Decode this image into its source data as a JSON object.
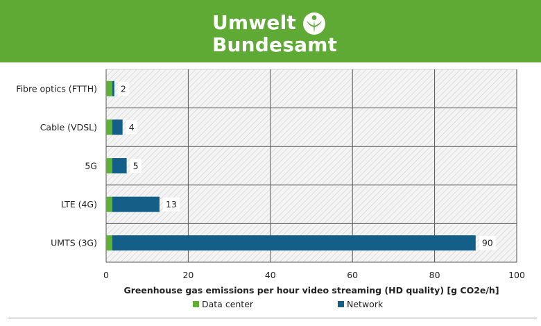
{
  "brand": {
    "line1": "Umwelt",
    "line2": "Bundesamt",
    "icon": "tree-figure-icon",
    "banner_color": "#5eaa35"
  },
  "chart_data": {
    "type": "bar",
    "orientation": "horizontal",
    "stacked": true,
    "categories": [
      "Fibre optics (FTTH)",
      "Cable (VDSL)",
      "5G",
      "LTE (4G)",
      "UMTS (3G)"
    ],
    "series": [
      {
        "name": "Data center",
        "color": "#5fb135",
        "values": [
          1.5,
          1.5,
          1.5,
          1.5,
          1.5
        ]
      },
      {
        "name": "Network",
        "color": "#135f87",
        "values": [
          0.5,
          2.5,
          3.5,
          11.5,
          88.5
        ]
      }
    ],
    "totals": [
      "2",
      "4",
      "5",
      "13",
      "90"
    ],
    "xlim": [
      0,
      100
    ],
    "xticks": [
      0,
      20,
      40,
      60,
      80,
      100
    ],
    "xlabel": "Greenhouse gas emissions per hour video streaming (HD quality) [g CO2e/h]",
    "ylabel": "",
    "title": "",
    "grid": true,
    "legend_position": "bottom"
  }
}
